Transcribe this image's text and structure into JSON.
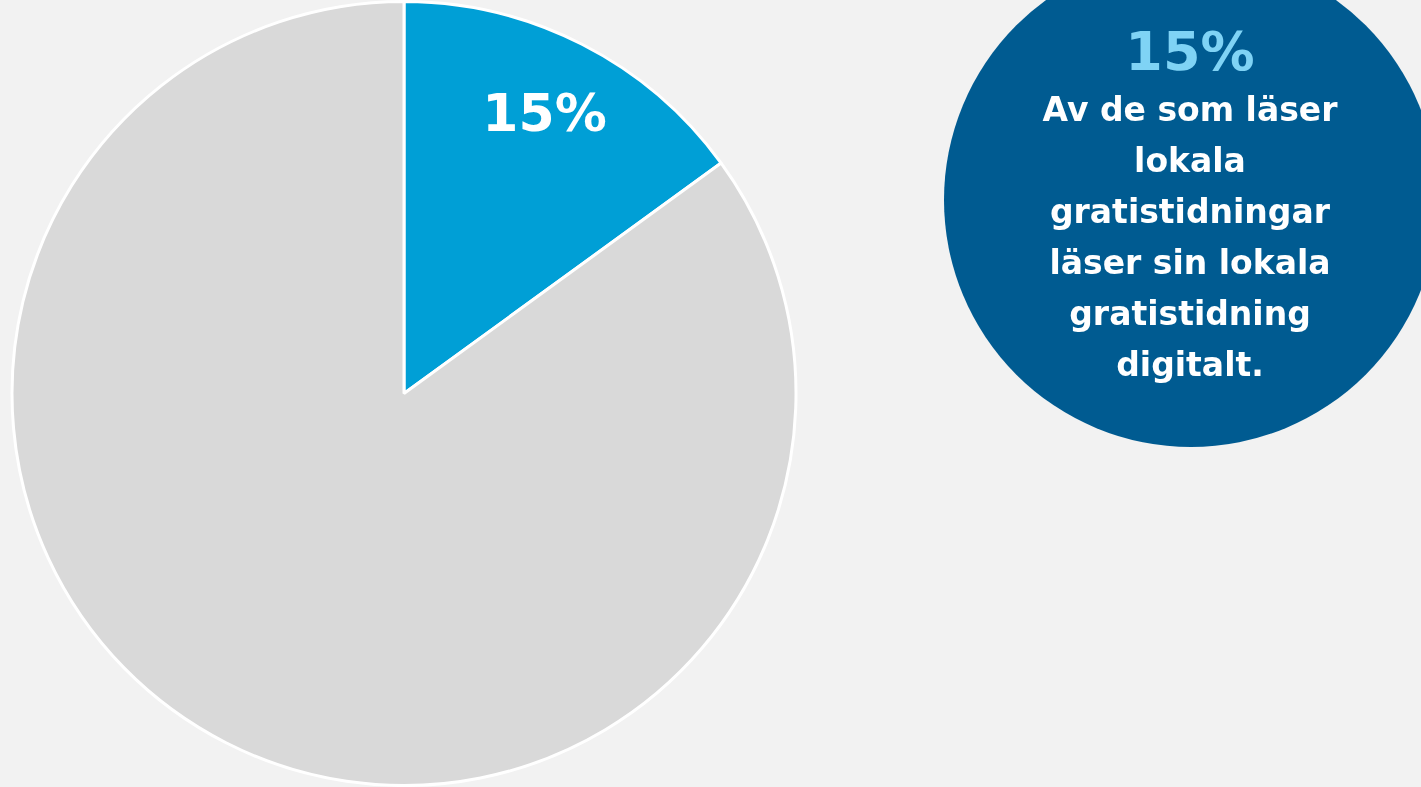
{
  "chart_data": {
    "type": "pie",
    "categories": [
      null,
      null
    ],
    "values": [
      15,
      85
    ],
    "colors": [
      "#009fd6",
      "#d9d9d9"
    ],
    "value_labels": [
      "15%",
      null
    ],
    "annotations": [
      "15%",
      "Av de som läser lokala gratistidningar läser sin lokala gratistidning digitalt."
    ]
  }
}
